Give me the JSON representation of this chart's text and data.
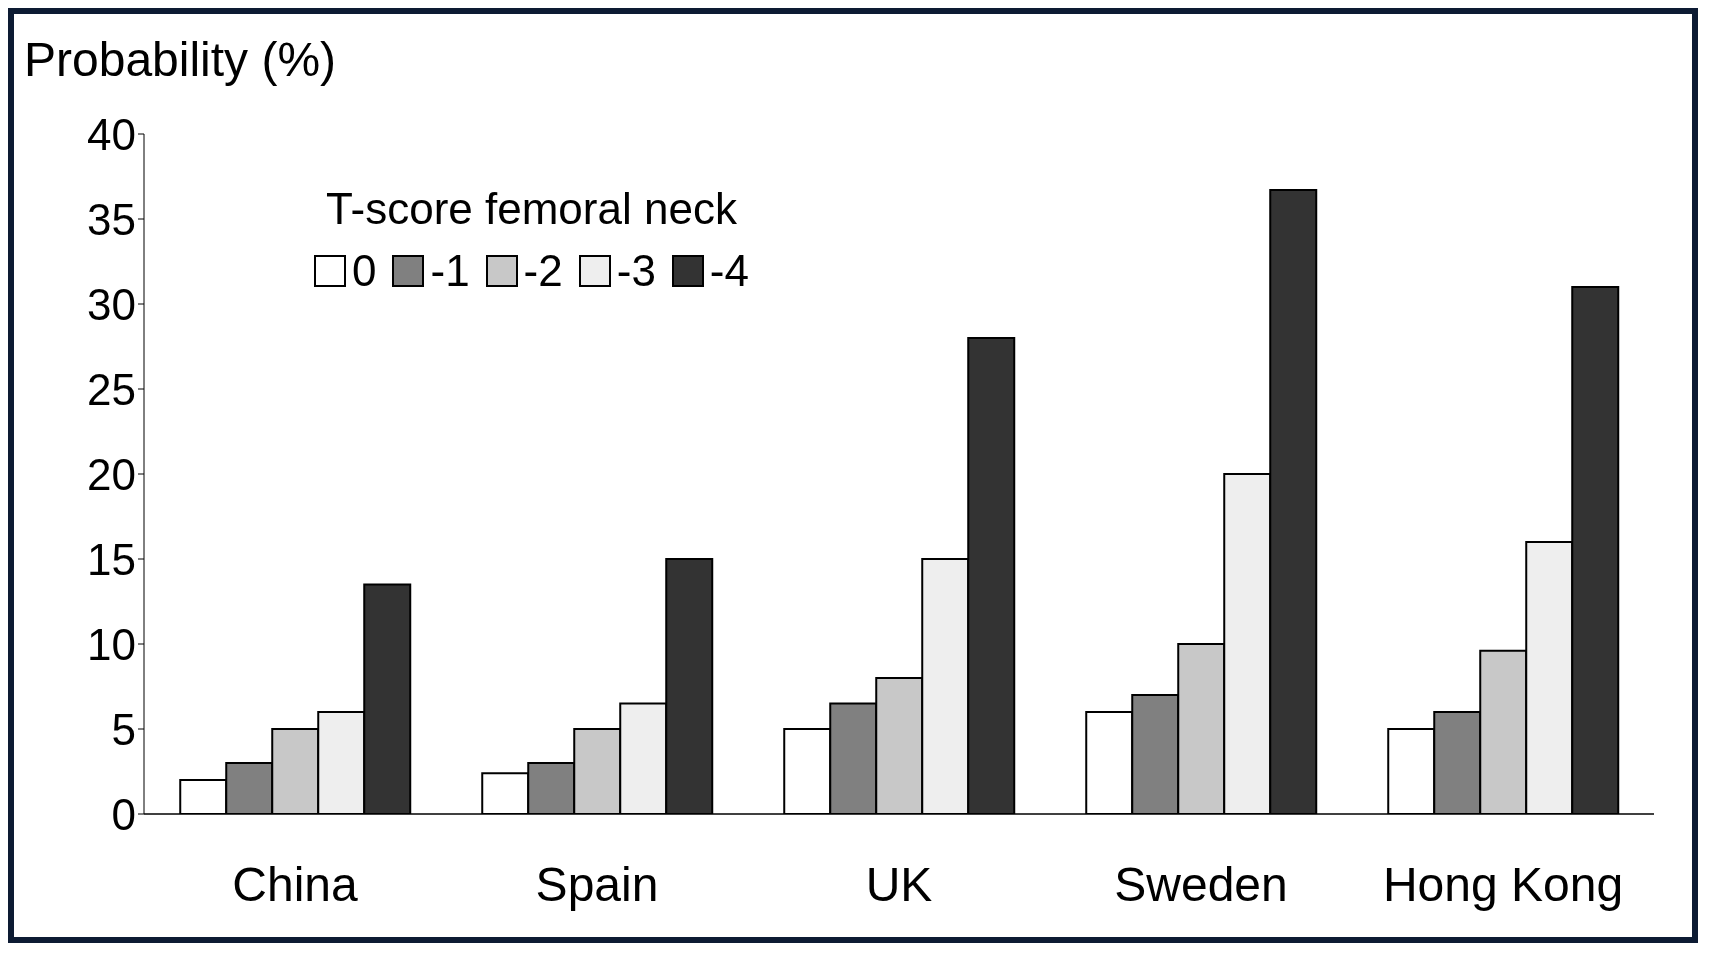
{
  "chart_data": {
    "type": "bar",
    "ylabel": "Probability (%)",
    "legend_title": "T-score femoral neck",
    "categories": [
      "China",
      "Spain",
      "UK",
      "Sweden",
      "Hong Kong"
    ],
    "series": [
      {
        "name": "0",
        "color": "#ffffff",
        "values": [
          2,
          2.4,
          5,
          6,
          5
        ]
      },
      {
        "name": "-1",
        "color": "#808080",
        "values": [
          3,
          3,
          6.5,
          7,
          6
        ]
      },
      {
        "name": "-2",
        "color": "#c8c8c8",
        "values": [
          5,
          5,
          8,
          10,
          9.6
        ]
      },
      {
        "name": "-3",
        "color": "#eeeeee",
        "values": [
          6,
          6.5,
          15,
          20,
          16
        ]
      },
      {
        "name": "-4",
        "color": "#333333",
        "values": [
          13.5,
          15,
          28,
          36.7,
          31
        ]
      }
    ],
    "ylim": [
      0,
      40
    ],
    "yticks": [
      0,
      5,
      10,
      15,
      20,
      25,
      30,
      35,
      40
    ],
    "grid": false,
    "legend": "top left"
  }
}
